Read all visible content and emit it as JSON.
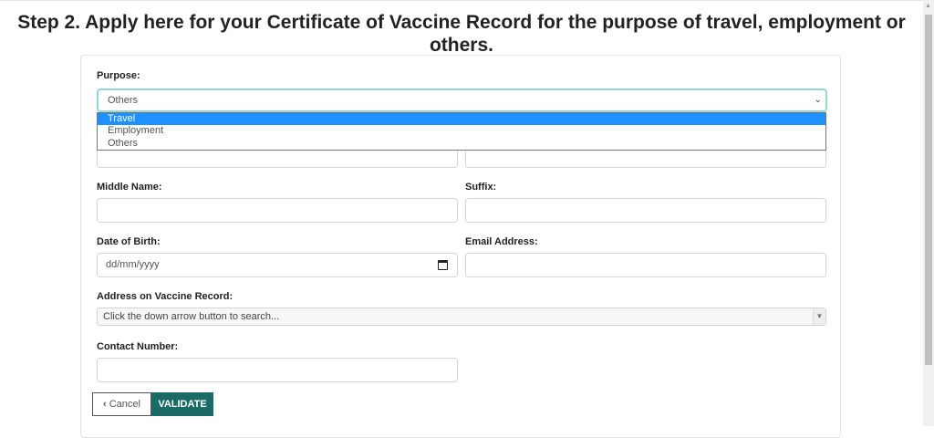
{
  "title": "Step 2. Apply here for your Certificate of Vaccine Record for the purpose of travel, employment or others.",
  "purpose": {
    "label": "Purpose:",
    "value": "Others",
    "options": [
      "Travel",
      "Employment",
      "Others"
    ],
    "highlighted": "Travel"
  },
  "middle_name": {
    "label": "Middle Name:",
    "value": ""
  },
  "suffix": {
    "label": "Suffix:",
    "value": ""
  },
  "dob": {
    "label": "Date of Birth:",
    "placeholder": "dd/mm/yyyy"
  },
  "email": {
    "label": "Email Address:",
    "value": ""
  },
  "address": {
    "label": "Address on Vaccine Record:",
    "placeholder": "Click the down arrow button to search..."
  },
  "contact": {
    "label": "Contact Number:",
    "value": ""
  },
  "buttons": {
    "cancel": "Cancel",
    "validate": "VALIDATE"
  },
  "colors": {
    "accent": "#1a6b66",
    "highlight": "#1e90ff",
    "focus": "#8fd9d9"
  }
}
